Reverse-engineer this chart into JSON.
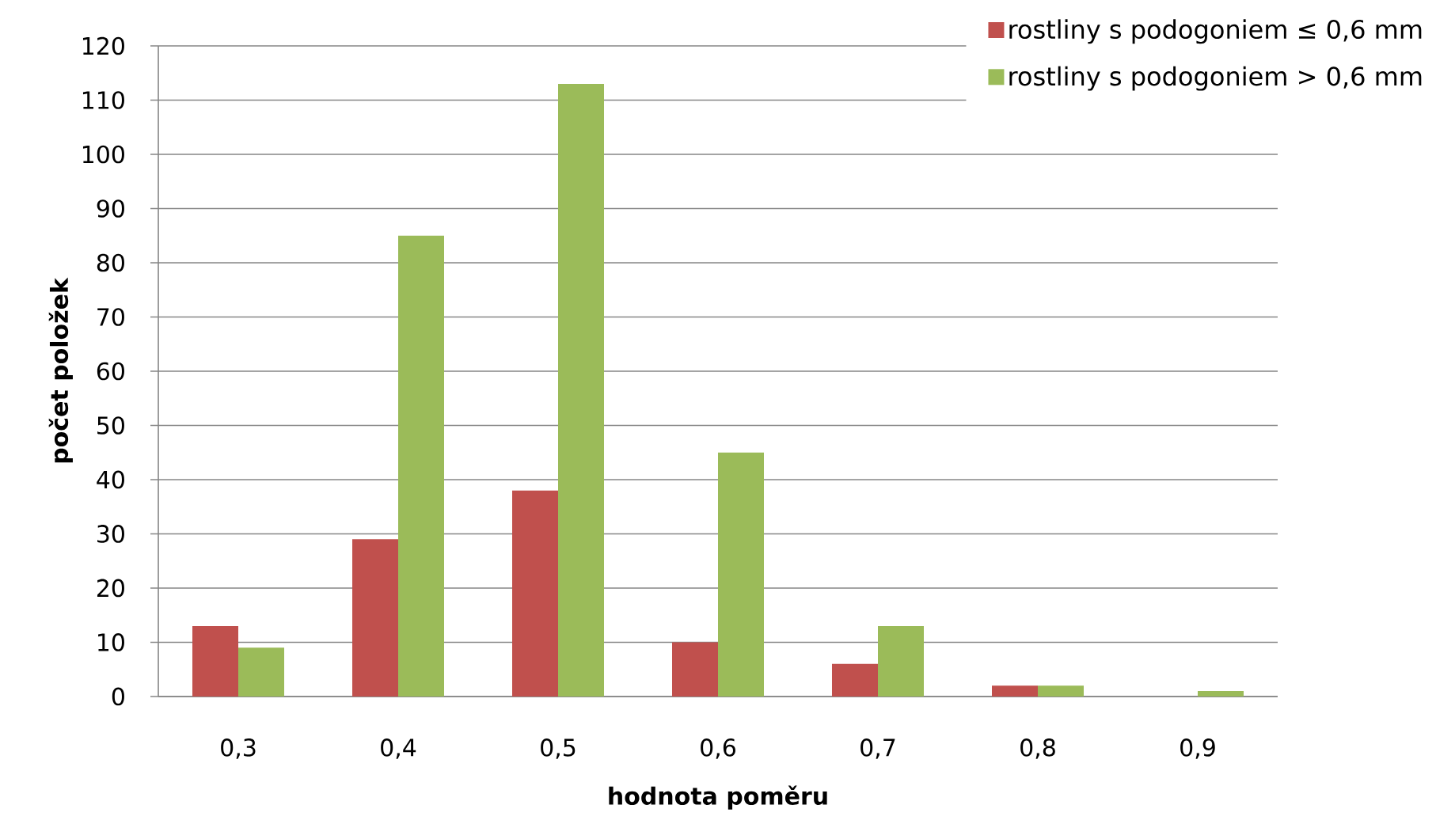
{
  "chart_data": {
    "type": "bar",
    "xlabel": "hodnota poměru",
    "ylabel": "počet položek",
    "categories": [
      "0,3",
      "0,4",
      "0,5",
      "0,6",
      "0,7",
      "0,8",
      "0,9"
    ],
    "series": [
      {
        "name": "rostliny s podogoniem ≤ 0,6 mm",
        "color": "#c0504d",
        "values": [
          13,
          29,
          38,
          10,
          6,
          2,
          0
        ]
      },
      {
        "name": "rostliny s podogoniem > 0,6 mm",
        "color": "#9bbb59",
        "values": [
          9,
          85,
          113,
          45,
          13,
          2,
          1
        ]
      }
    ],
    "ylim": [
      0,
      120
    ],
    "yticks": [
      0,
      10,
      20,
      30,
      40,
      50,
      60,
      70,
      80,
      90,
      100,
      110,
      120
    ],
    "grid": "y",
    "legend": "top right"
  }
}
